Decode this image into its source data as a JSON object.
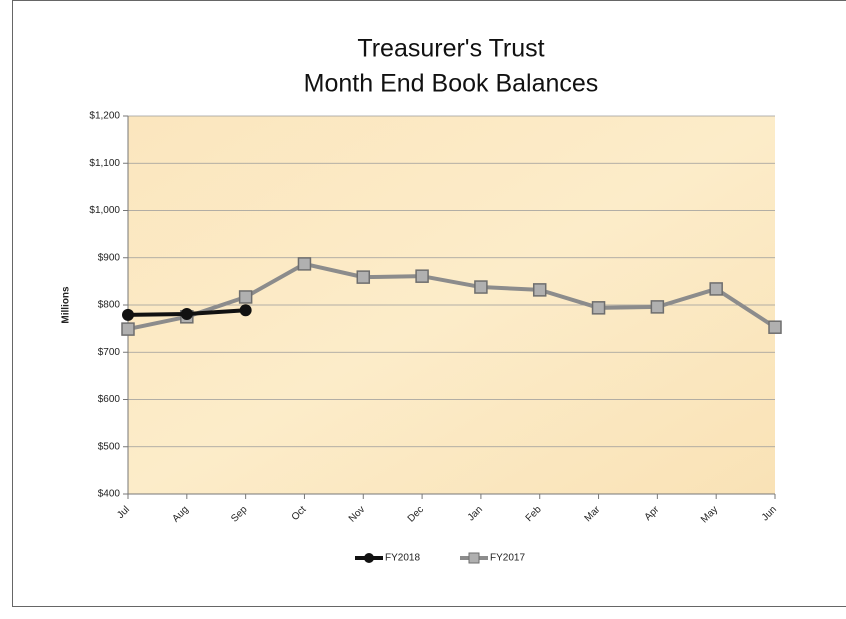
{
  "chart_data": {
    "type": "line",
    "title": [
      "Treasurer's Trust",
      "Month End Book Balances"
    ],
    "y_label": "Millions",
    "categories": [
      "Jul",
      "Aug",
      "Sep",
      "Oct",
      "Nov",
      "Dec",
      "Jan",
      "Feb",
      "Mar",
      "Apr",
      "May",
      "Jun"
    ],
    "series": [
      {
        "name": "FY2018",
        "color": "#111111",
        "marker": "circle",
        "values": [
          779,
          781,
          789,
          null,
          null,
          null,
          null,
          null,
          null,
          null,
          null,
          null
        ]
      },
      {
        "name": "FY2017",
        "color": "#8c8c8c",
        "marker": "square",
        "values": [
          749,
          775,
          817,
          887,
          859,
          861,
          838,
          832,
          794,
          796,
          834,
          753
        ]
      }
    ],
    "ylim": [
      400,
      1200
    ],
    "yticks": [
      {
        "value": 400,
        "label": "$400"
      },
      {
        "value": 500,
        "label": "$500"
      },
      {
        "value": 600,
        "label": "$600"
      },
      {
        "value": 700,
        "label": "$700"
      },
      {
        "value": 800,
        "label": "$800"
      },
      {
        "value": 900,
        "label": "$900"
      },
      {
        "value": 1000,
        "label": "$1,000"
      },
      {
        "value": 1100,
        "label": "$1,100"
      },
      {
        "value": 1200,
        "label": "$1,200"
      }
    ],
    "grid": true,
    "legend": "bottom"
  }
}
